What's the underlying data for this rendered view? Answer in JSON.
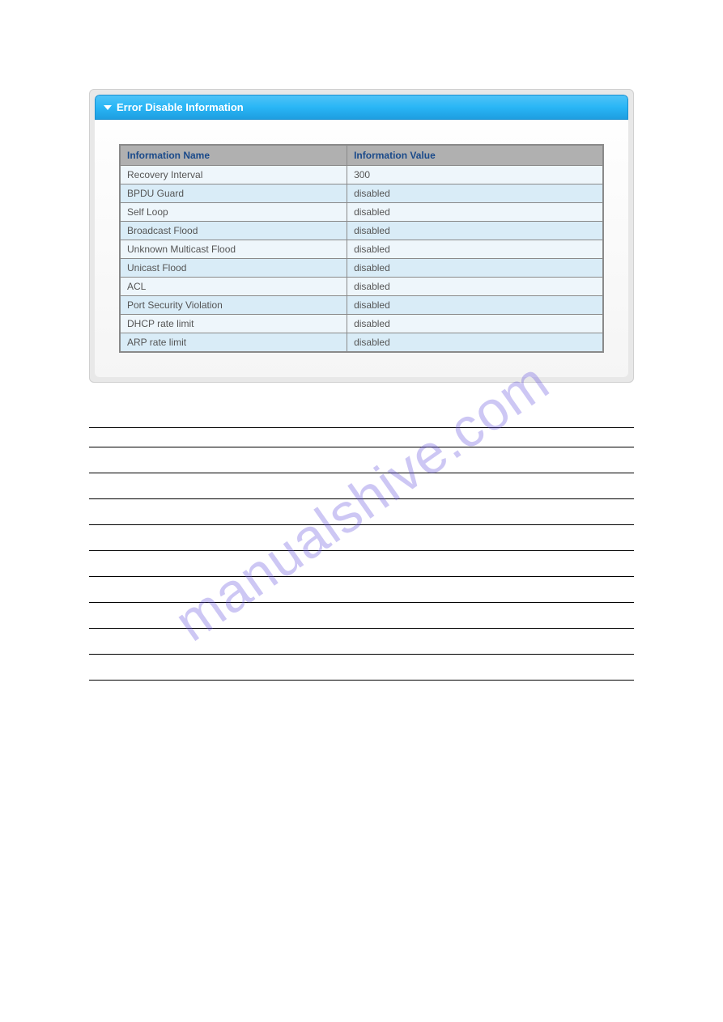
{
  "panel": {
    "title": "Error Disable Information"
  },
  "info_table": {
    "columns": [
      "Information Name",
      "Information Value"
    ],
    "rows": [
      [
        "Recovery Interval",
        "300"
      ],
      [
        "BPDU Guard",
        "disabled"
      ],
      [
        "Self Loop",
        "disabled"
      ],
      [
        "Broadcast Flood",
        "disabled"
      ],
      [
        "Unknown Multicast Flood",
        "disabled"
      ],
      [
        "Unicast Flood",
        "disabled"
      ],
      [
        "ACL",
        "disabled"
      ],
      [
        "Port Security Violation",
        "disabled"
      ],
      [
        "DHCP rate limit",
        "disabled"
      ],
      [
        "ARP rate limit",
        "disabled"
      ]
    ],
    "header_bg": "#b0b0b0",
    "header_text_color": "#1a4a8a",
    "row_alt_colors": [
      "#eef6fb",
      "#d9ecf7"
    ],
    "border_color": "#8a8a8a",
    "cell_text_color": "#555555"
  },
  "def_section": {
    "row_count": 10
  },
  "watermark": {
    "text": "manualshive.com",
    "color": "rgba(100,80,220,0.32)",
    "rotation_deg": -35
  },
  "panel_gradient": {
    "from": "#4fc3f7",
    "mid": "#29b6f6",
    "to": "#1e9ee0"
  }
}
